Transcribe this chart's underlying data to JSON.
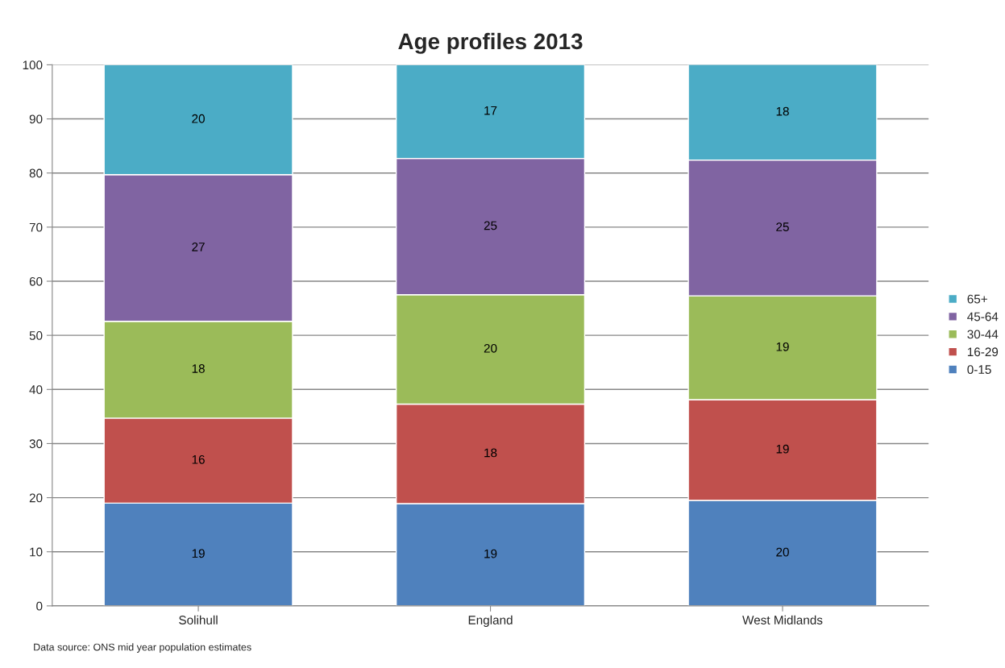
{
  "chart_data": {
    "type": "bar",
    "title": "Age profiles 2013",
    "stacked": true,
    "categories": [
      "Solihull",
      "England",
      "West Midlands"
    ],
    "series": [
      {
        "name": "0-15",
        "color": "#4f81bd",
        "values": [
          19.0,
          18.9,
          19.5
        ],
        "value_labels": [
          "19",
          "19",
          "20"
        ]
      },
      {
        "name": "16-29",
        "color": "#c0504d",
        "values": [
          15.7,
          18.4,
          18.6
        ],
        "value_labels": [
          "16",
          "18",
          "19"
        ]
      },
      {
        "name": "30-44",
        "color": "#9bbb59",
        "values": [
          17.9,
          20.2,
          19.2
        ],
        "value_labels": [
          "18",
          "20",
          "19"
        ]
      },
      {
        "name": "45-64",
        "color": "#8064a2",
        "values": [
          27.1,
          25.2,
          25.1
        ],
        "value_labels": [
          "27",
          "25",
          "25"
        ]
      },
      {
        "name": "65+",
        "color": "#4bacc6",
        "values": [
          20.3,
          17.3,
          17.7
        ],
        "value_labels": [
          "20",
          "17",
          "18"
        ]
      }
    ],
    "ylim": [
      0,
      100
    ],
    "yticks": [
      0,
      10,
      20,
      30,
      40,
      50,
      60,
      70,
      80,
      90,
      100
    ],
    "grid": "y",
    "legend": "right",
    "annotations": [
      "Data source: ONS mid year population estimates"
    ]
  }
}
